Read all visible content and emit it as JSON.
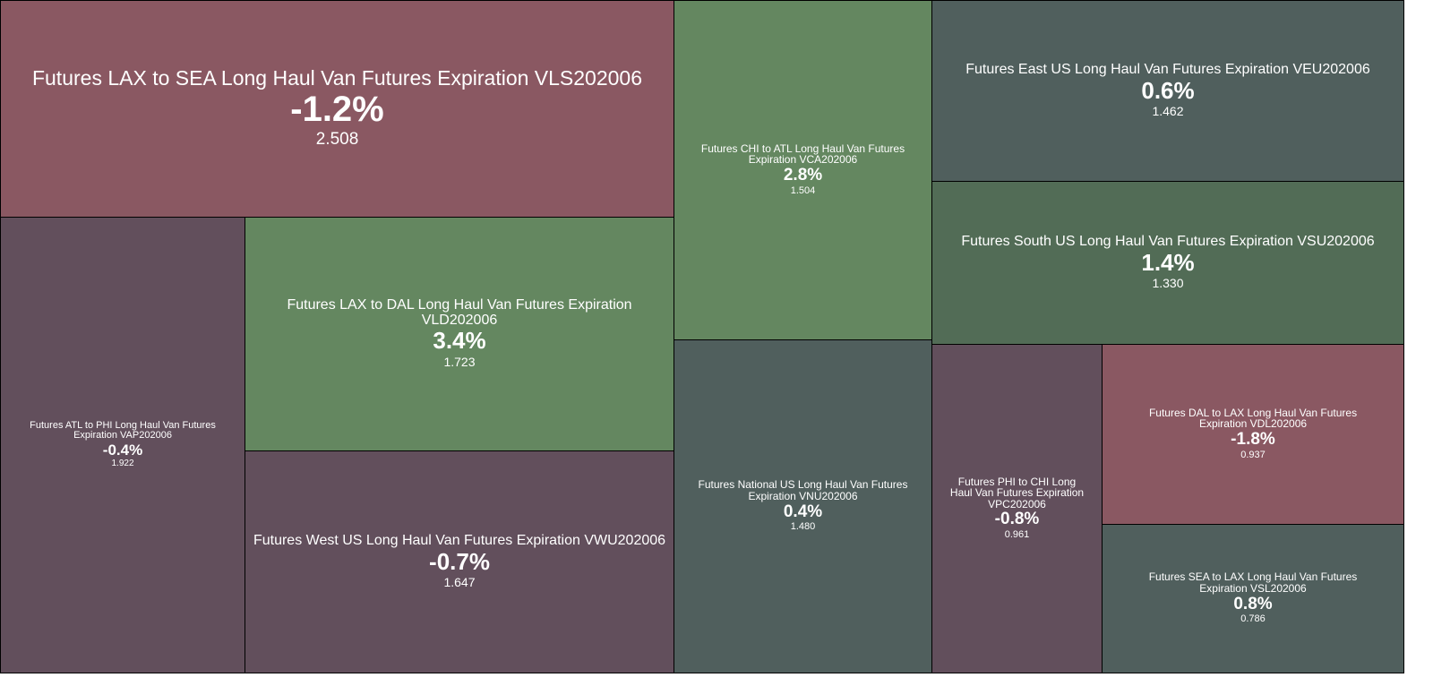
{
  "colors": {
    "strong_negative": "#8a5862",
    "mild_negative": "#624f5c",
    "neutral": "#505f5d",
    "positive": "#648760",
    "mild_positive": "#526c56"
  },
  "tiles": {
    "vls": {
      "label": "Futures LAX to SEA Long Haul Van Futures Expiration VLS202006",
      "change": "-1.2%",
      "price": "2.508"
    },
    "vap": {
      "label": "Futures ATL to PHI Long Haul Van Futures Expiration VAP202006",
      "change": "-0.4%",
      "price": "1.922"
    },
    "vld": {
      "label": "Futures LAX to DAL Long Haul Van Futures Expiration VLD202006",
      "change": "3.4%",
      "price": "1.723"
    },
    "vwu": {
      "label": "Futures West US Long Haul Van Futures Expiration VWU202006",
      "change": "-0.7%",
      "price": "1.647"
    },
    "vca": {
      "label": "Futures CHI to ATL Long Haul Van Futures Expiration VCA202006",
      "change": "2.8%",
      "price": "1.504"
    },
    "vnu": {
      "label": "Futures National US Long Haul Van Futures Expiration VNU202006",
      "change": "0.4%",
      "price": "1.480"
    },
    "veu": {
      "label": "Futures East US Long Haul Van Futures Expiration VEU202006",
      "change": "0.6%",
      "price": "1.462"
    },
    "vsu": {
      "label": "Futures South US Long Haul Van Futures Expiration VSU202006",
      "change": "1.4%",
      "price": "1.330"
    },
    "vpc": {
      "label": "Futures PHI to CHI Long Haul Van Futures Expiration VPC202006",
      "change": "-0.8%",
      "price": "0.961"
    },
    "vdl": {
      "label": "Futures DAL to LAX Long Haul Van Futures Expiration VDL202006",
      "change": "-1.8%",
      "price": "0.937"
    },
    "vsl": {
      "label": "Futures SEA to LAX Long Haul Van Futures Expiration VSL202006",
      "change": "0.8%",
      "price": "0.786"
    }
  }
}
